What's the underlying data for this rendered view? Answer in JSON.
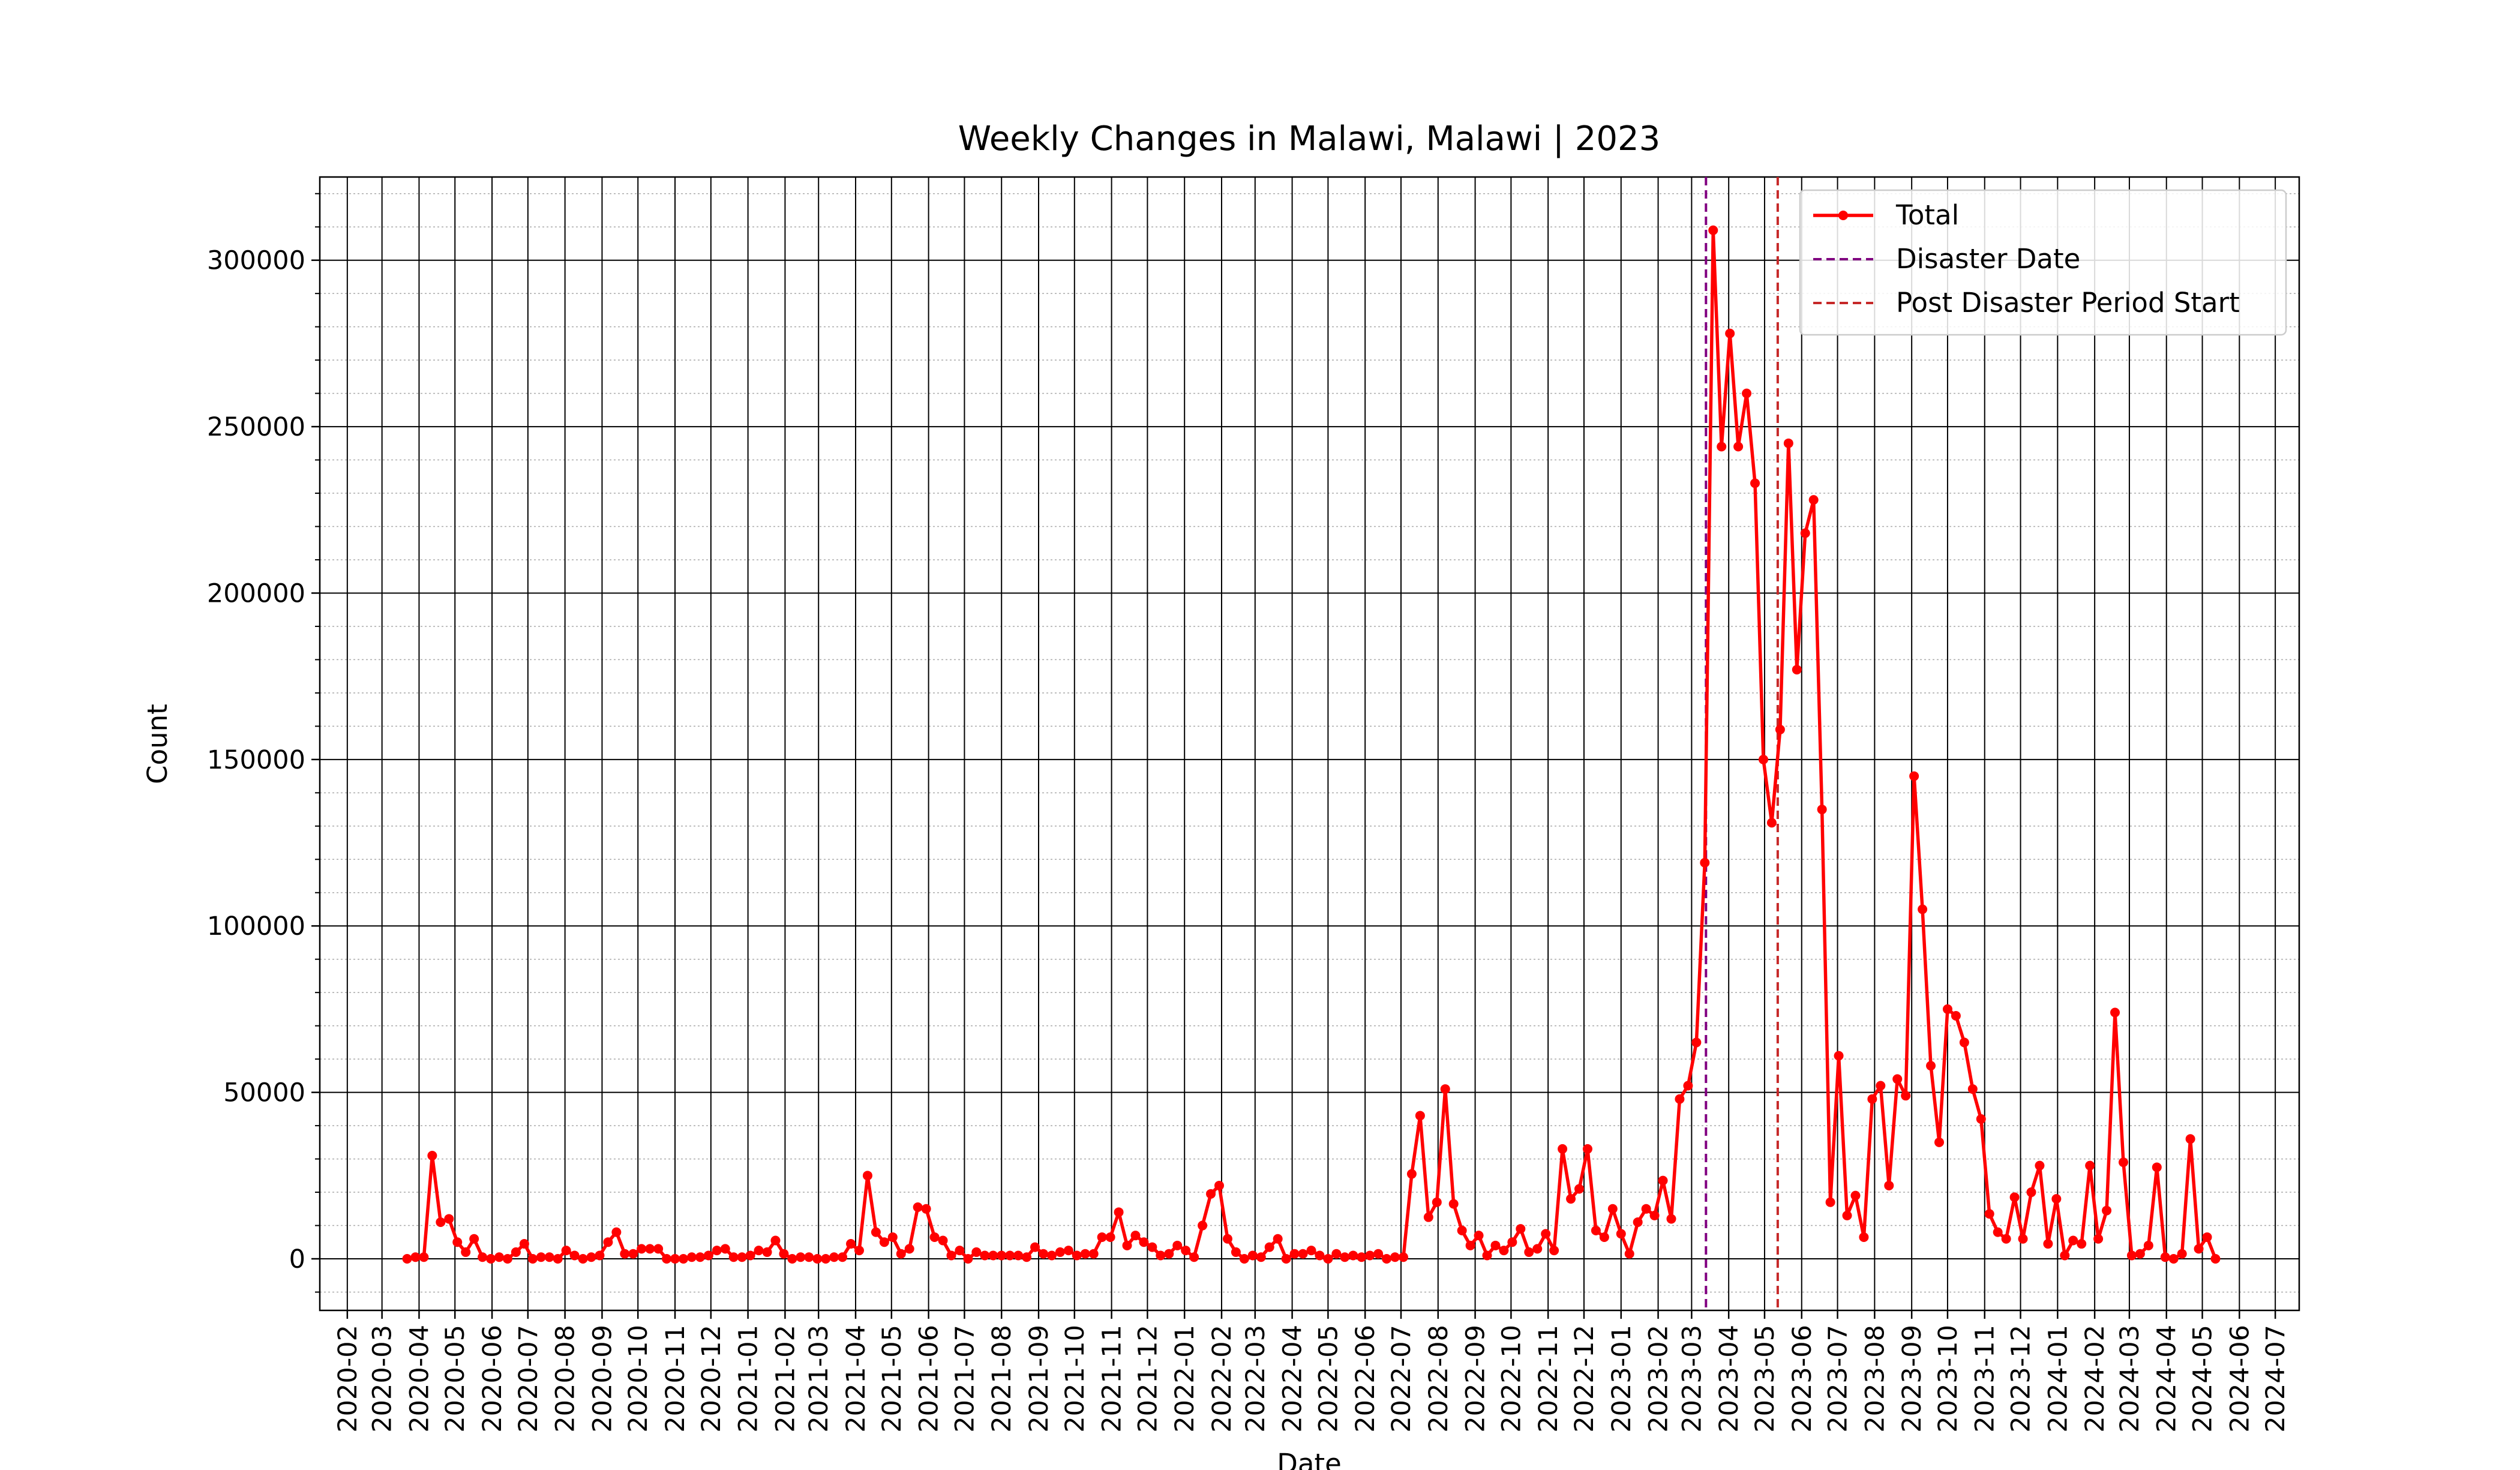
{
  "chart_data": {
    "type": "line",
    "title": "Weekly Changes in Malawi, Malawi | 2023",
    "xlabel": "Date",
    "ylabel": "Count",
    "x": [
      "2020-03-22",
      "2020-03-29",
      "2020-04-05",
      "2020-04-12",
      "2020-04-19",
      "2020-04-26",
      "2020-05-03",
      "2020-05-10",
      "2020-05-17",
      "2020-05-24",
      "2020-05-31",
      "2020-06-07",
      "2020-06-14",
      "2020-06-21",
      "2020-06-28",
      "2020-07-05",
      "2020-07-12",
      "2020-07-19",
      "2020-07-26",
      "2020-08-02",
      "2020-08-09",
      "2020-08-16",
      "2020-08-23",
      "2020-08-30",
      "2020-09-06",
      "2020-09-13",
      "2020-09-20",
      "2020-09-27",
      "2020-10-04",
      "2020-10-11",
      "2020-10-18",
      "2020-10-25",
      "2020-11-01",
      "2020-11-08",
      "2020-11-15",
      "2020-11-22",
      "2020-11-29",
      "2020-12-06",
      "2020-12-13",
      "2020-12-20",
      "2020-12-27",
      "2021-01-03",
      "2021-01-10",
      "2021-01-17",
      "2021-01-24",
      "2021-01-31",
      "2021-02-07",
      "2021-02-14",
      "2021-02-21",
      "2021-02-28",
      "2021-03-07",
      "2021-03-14",
      "2021-03-21",
      "2021-03-28",
      "2021-04-04",
      "2021-04-11",
      "2021-04-18",
      "2021-04-25",
      "2021-05-02",
      "2021-05-09",
      "2021-05-16",
      "2021-05-23",
      "2021-05-30",
      "2021-06-06",
      "2021-06-13",
      "2021-06-20",
      "2021-06-27",
      "2021-07-04",
      "2021-07-11",
      "2021-07-18",
      "2021-07-25",
      "2021-08-01",
      "2021-08-08",
      "2021-08-15",
      "2021-08-22",
      "2021-08-29",
      "2021-09-05",
      "2021-09-12",
      "2021-09-19",
      "2021-09-26",
      "2021-10-03",
      "2021-10-10",
      "2021-10-17",
      "2021-10-24",
      "2021-10-31",
      "2021-11-07",
      "2021-11-14",
      "2021-11-21",
      "2021-11-28",
      "2021-12-05",
      "2021-12-12",
      "2021-12-19",
      "2021-12-26",
      "2022-01-02",
      "2022-01-09",
      "2022-01-16",
      "2022-01-23",
      "2022-01-30",
      "2022-02-06",
      "2022-02-13",
      "2022-02-20",
      "2022-02-27",
      "2022-03-06",
      "2022-03-13",
      "2022-03-20",
      "2022-03-27",
      "2022-04-03",
      "2022-04-10",
      "2022-04-17",
      "2022-04-24",
      "2022-05-01",
      "2022-05-08",
      "2022-05-15",
      "2022-05-22",
      "2022-05-29",
      "2022-06-05",
      "2022-06-12",
      "2022-06-19",
      "2022-06-26",
      "2022-07-03",
      "2022-07-10",
      "2022-07-17",
      "2022-07-24",
      "2022-07-31",
      "2022-08-07",
      "2022-08-14",
      "2022-08-21",
      "2022-08-28",
      "2022-09-04",
      "2022-09-11",
      "2022-09-18",
      "2022-09-25",
      "2022-10-02",
      "2022-10-09",
      "2022-10-16",
      "2022-10-23",
      "2022-10-30",
      "2022-11-06",
      "2022-11-13",
      "2022-11-20",
      "2022-11-27",
      "2022-12-04",
      "2022-12-11",
      "2022-12-18",
      "2022-12-25",
      "2023-01-01",
      "2023-01-08",
      "2023-01-15",
      "2023-01-22",
      "2023-01-29",
      "2023-02-05",
      "2023-02-12",
      "2023-02-19",
      "2023-02-26",
      "2023-03-05",
      "2023-03-12",
      "2023-03-19",
      "2023-03-26",
      "2023-04-02",
      "2023-04-09",
      "2023-04-16",
      "2023-04-23",
      "2023-04-30",
      "2023-05-07",
      "2023-05-14",
      "2023-05-21",
      "2023-05-28",
      "2023-06-04",
      "2023-06-11",
      "2023-06-18",
      "2023-06-25",
      "2023-07-02",
      "2023-07-09",
      "2023-07-16",
      "2023-07-23",
      "2023-07-30",
      "2023-08-06",
      "2023-08-13",
      "2023-08-20",
      "2023-08-27",
      "2023-09-03",
      "2023-09-10",
      "2023-09-17",
      "2023-09-24",
      "2023-10-01",
      "2023-10-08",
      "2023-10-15",
      "2023-10-22",
      "2023-10-29",
      "2023-11-05",
      "2023-11-12",
      "2023-11-19",
      "2023-11-26",
      "2023-12-03",
      "2023-12-10",
      "2023-12-17",
      "2023-12-24",
      "2023-12-31",
      "2024-01-07",
      "2024-01-14",
      "2024-01-21",
      "2024-01-28",
      "2024-02-04",
      "2024-02-11",
      "2024-02-18",
      "2024-02-25",
      "2024-03-03",
      "2024-03-10",
      "2024-03-17",
      "2024-03-24",
      "2024-03-31",
      "2024-04-07",
      "2024-04-14",
      "2024-04-21",
      "2024-04-28",
      "2024-05-05",
      "2024-05-12"
    ],
    "series": [
      {
        "name": "Total",
        "color": "#ff0000",
        "values": [
          0,
          500,
          500,
          31000,
          11000,
          12000,
          5000,
          2000,
          6000,
          500,
          0,
          500,
          0,
          2000,
          4500,
          0,
          500,
          500,
          0,
          2500,
          1000,
          0,
          500,
          1000,
          5000,
          8000,
          1500,
          1500,
          3000,
          3000,
          3000,
          0,
          0,
          0,
          500,
          500,
          1000,
          2500,
          3000,
          500,
          500,
          1000,
          2500,
          2000,
          5500,
          1500,
          0,
          500,
          500,
          0,
          0,
          500,
          500,
          4500,
          2500,
          25000,
          8000,
          5000,
          6500,
          1500,
          3000,
          15500,
          15000,
          6500,
          5500,
          1000,
          2500,
          0,
          2000,
          1000,
          1000,
          1000,
          1000,
          1000,
          500,
          3500,
          1500,
          1000,
          2000,
          2500,
          1000,
          1500,
          1500,
          6500,
          6500,
          14000,
          4000,
          7000,
          5000,
          3500,
          1000,
          1500,
          4000,
          2500,
          500,
          10000,
          19500,
          22000,
          6000,
          2000,
          0,
          1000,
          500,
          3500,
          6000,
          0,
          1500,
          1500,
          2500,
          1000,
          0,
          1500,
          500,
          1000,
          500,
          1000,
          1500,
          0,
          500,
          500,
          25500,
          43000,
          12500,
          17000,
          51000,
          16500,
          8500,
          4000,
          7000,
          1000,
          4000,
          2500,
          5000,
          9000,
          2000,
          3000,
          7500,
          2500,
          33000,
          18000,
          21000,
          33000,
          8500,
          6500,
          15000,
          7500,
          1500,
          11000,
          15000,
          13000,
          23500,
          12000,
          48000,
          52000,
          65000,
          119000,
          309000,
          244000,
          278000,
          244000,
          260000,
          233000,
          150000,
          131000,
          159000,
          245000,
          177000,
          218000,
          228000,
          135000,
          17000,
          61000,
          13000,
          19000,
          6500,
          48000,
          52000,
          22000,
          54000,
          49000,
          145000,
          105000,
          58000,
          35000,
          75000,
          73000,
          65000,
          51000,
          42000,
          13500,
          8000,
          6000,
          18500,
          6000,
          20000,
          28000,
          4500,
          18000,
          1000,
          5500,
          4500,
          28000,
          6000,
          14500,
          74000,
          29000,
          1000,
          1500,
          4000,
          27500,
          500,
          0,
          1500,
          36000,
          3000,
          6500,
          0
        ]
      }
    ],
    "vlines": [
      {
        "name": "Disaster Date",
        "x": "2023-03-13",
        "color": "#800080"
      },
      {
        "name": "Post Disaster Period Start",
        "x": "2023-05-12",
        "color": "#c62828"
      }
    ],
    "xlim": [
      "2020-01-09",
      "2024-07-21"
    ],
    "xticks": [
      "2020-02",
      "2020-03",
      "2020-04",
      "2020-05",
      "2020-06",
      "2020-07",
      "2020-08",
      "2020-09",
      "2020-10",
      "2020-11",
      "2020-12",
      "2021-01",
      "2021-02",
      "2021-03",
      "2021-04",
      "2021-05",
      "2021-06",
      "2021-07",
      "2021-08",
      "2021-09",
      "2021-10",
      "2021-11",
      "2021-12",
      "2022-01",
      "2022-02",
      "2022-03",
      "2022-04",
      "2022-05",
      "2022-06",
      "2022-07",
      "2022-08",
      "2022-09",
      "2022-10",
      "2022-11",
      "2022-12",
      "2023-01",
      "2023-02",
      "2023-03",
      "2023-04",
      "2023-05",
      "2023-06",
      "2023-07",
      "2023-08",
      "2023-09",
      "2023-10",
      "2023-11",
      "2023-12",
      "2024-01",
      "2024-02",
      "2024-03",
      "2024-04",
      "2024-05",
      "2024-06",
      "2024-07"
    ],
    "ylim": [
      -15500,
      325000
    ],
    "yticks": [
      0,
      50000,
      100000,
      150000,
      200000,
      250000,
      300000
    ],
    "yticks_minor": [
      -10000,
      10000,
      20000,
      30000,
      40000,
      60000,
      70000,
      80000,
      90000,
      110000,
      120000,
      130000,
      140000,
      160000,
      170000,
      180000,
      190000,
      210000,
      220000,
      230000,
      240000,
      260000,
      270000,
      280000,
      290000,
      310000,
      320000
    ],
    "grid": true,
    "legend": "upper right"
  }
}
